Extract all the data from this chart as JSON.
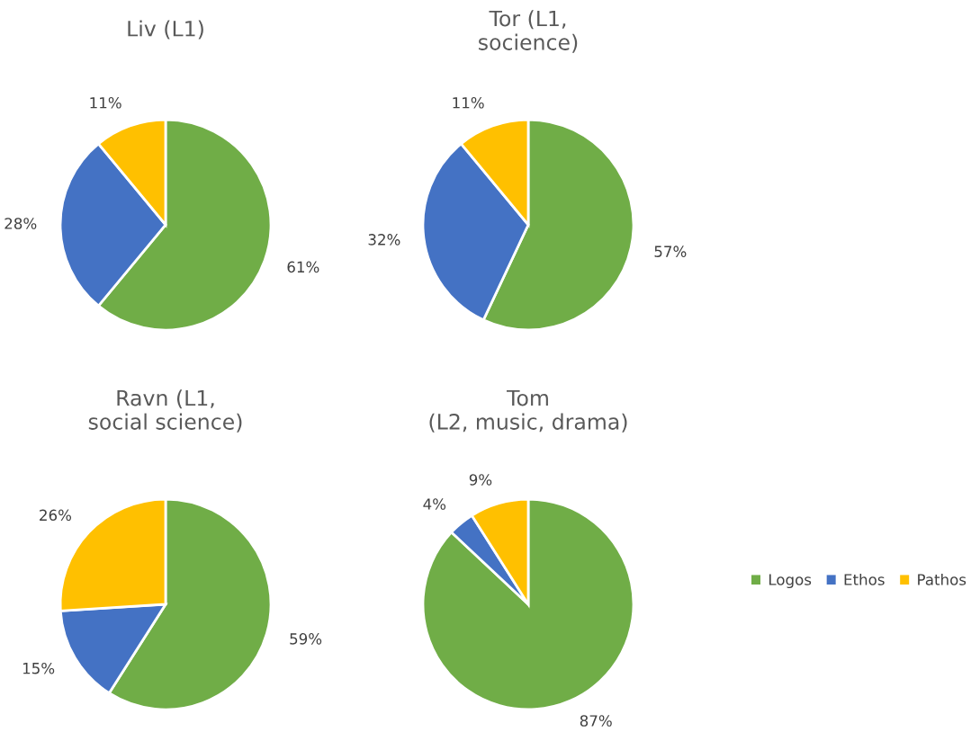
{
  "chart_data": [
    {
      "type": "pie",
      "title": "Liv (L1)",
      "categories": [
        "Logos",
        "Ethos",
        "Pathos"
      ],
      "values": [
        61,
        28,
        11
      ],
      "colors": [
        "#70ad47",
        "#4472c4",
        "#ffc000"
      ],
      "value_labels": [
        "61%",
        "28%",
        "11%"
      ],
      "legend": "right"
    },
    {
      "type": "pie",
      "title": "Tor (L1,\nsocience)",
      "categories": [
        null,
        null,
        null
      ],
      "values": [
        57,
        32,
        11
      ],
      "colors": [
        "#70ad47",
        "#4472c4",
        "#ffc000"
      ],
      "value_labels": [
        "57%",
        "32%",
        "11%"
      ]
    },
    {
      "type": "pie",
      "title": "Ravn (L1,\nsocial science)",
      "categories": [
        null,
        null,
        null
      ],
      "values": [
        59,
        15,
        26
      ],
      "colors": [
        "#70ad47",
        "#4472c4",
        "#ffc000"
      ],
      "value_labels": [
        "59%",
        "15%",
        "26%"
      ]
    },
    {
      "type": "pie",
      "title": "Tom\n(L2, music, drama)",
      "categories": [
        null,
        null,
        null
      ],
      "values": [
        87,
        4,
        9
      ],
      "colors": [
        "#70ad47",
        "#4472c4",
        "#ffc000"
      ],
      "value_labels": [
        "87%",
        "4%",
        "9%"
      ]
    }
  ]
}
